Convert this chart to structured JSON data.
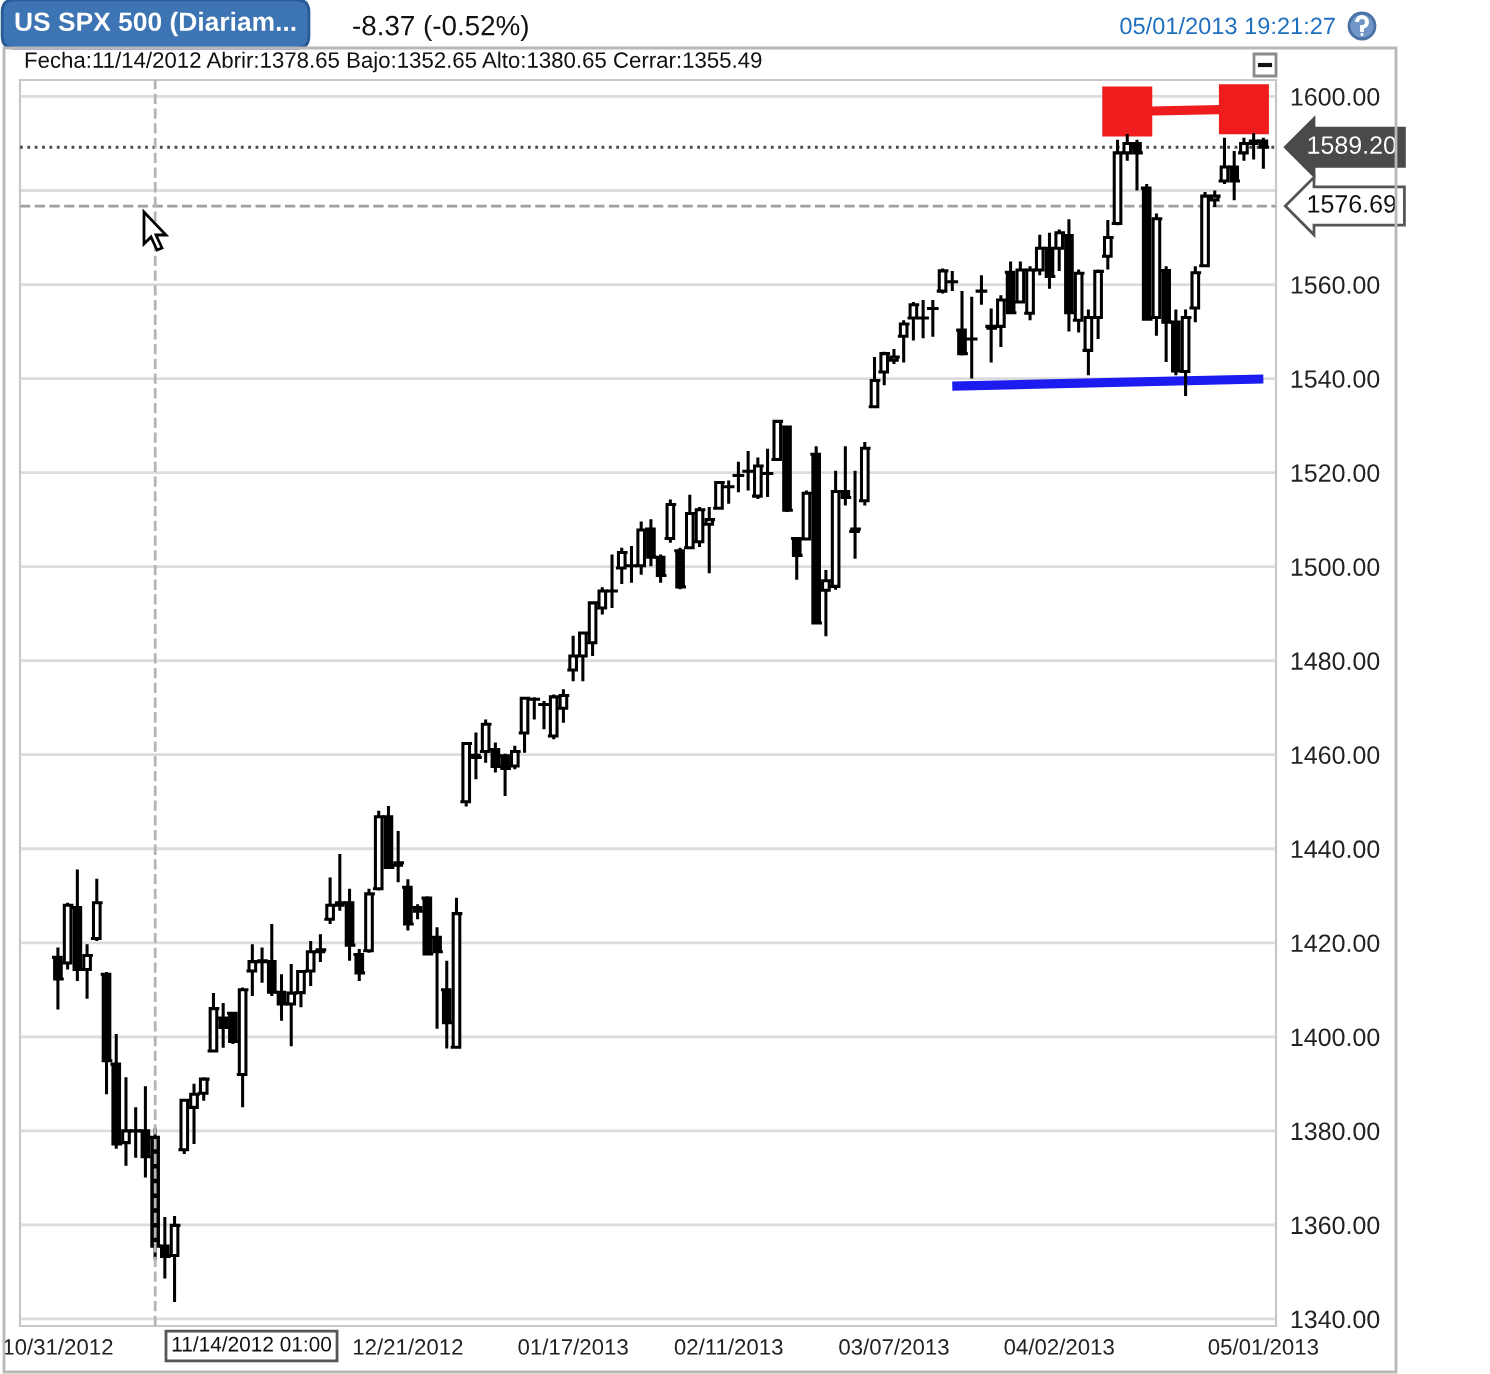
{
  "chart_data": {
    "type": "candlestick",
    "title": "US SPX 500 (Diariam...",
    "subtitle": "-8.37 (-0.52%)",
    "annotations": [
      "05/01/2013 19:21:27",
      "Fecha:11/14/2012 Abrir:1378.65 Bajo:1352.65 Alto:1380.65 Cerrar:1355.49",
      "11/14/2012 01:00"
    ],
    "categories": [
      "10/31/2012",
      null,
      null,
      null,
      null,
      null,
      null,
      null,
      null,
      null,
      null,
      null,
      null,
      null,
      null,
      null,
      null,
      null,
      null,
      null,
      null,
      null,
      null,
      null,
      null,
      null,
      null,
      null,
      null,
      null,
      null,
      null,
      null,
      null,
      null,
      null,
      "12/21/2012",
      null,
      null,
      null,
      null,
      null,
      null,
      null,
      null,
      null,
      null,
      null,
      null,
      null,
      null,
      null,
      null,
      "01/17/2013",
      null,
      null,
      null,
      null,
      null,
      null,
      null,
      null,
      null,
      null,
      null,
      null,
      null,
      null,
      null,
      "02/11/2013",
      null,
      null,
      null,
      null,
      null,
      null,
      null,
      null,
      null,
      null,
      null,
      null,
      null,
      null,
      null,
      null,
      "03/07/2013",
      null,
      null,
      null,
      null,
      null,
      null,
      null,
      null,
      null,
      null,
      null,
      null,
      null,
      null,
      null,
      null,
      "04/02/2013",
      null,
      null,
      null,
      null,
      null,
      null,
      null,
      null,
      null,
      null,
      null,
      null,
      null,
      null,
      null,
      null,
      null,
      null,
      null,
      null,
      "05/01/2013"
    ],
    "color": "#000000",
    "ohlc": [
      [
        1416.9,
        1419.0,
        1405.8,
        1412.3
      ],
      [
        1415.7,
        1428.5,
        1414.3,
        1428.0
      ],
      [
        1427.5,
        1435.6,
        1411.9,
        1414.3
      ],
      [
        1414.3,
        1419.7,
        1408.1,
        1417.3
      ],
      [
        1420.9,
        1433.6,
        1420.4,
        1428.5
      ],
      [
        1413.3,
        1413.8,
        1387.8,
        1394.9
      ],
      [
        1394.2,
        1400.6,
        1376.2,
        1377.2
      ],
      [
        1377.5,
        1391.4,
        1372.6,
        1380.0
      ],
      [
        1380.0,
        1385.0,
        1374.3,
        1380.0
      ],
      [
        1380.0,
        1389.5,
        1370.1,
        1374.5
      ],
      [
        1378.65,
        1380.65,
        1352.65,
        1355.49
      ],
      [
        1355.5,
        1361.7,
        1348.6,
        1353.3
      ],
      [
        1353.5,
        1361.9,
        1343.6,
        1359.9
      ],
      [
        1376.0,
        1386.8,
        1375.1,
        1386.5
      ],
      [
        1385.0,
        1390.0,
        1377.2,
        1387.8
      ],
      [
        1388.0,
        1391.4,
        1386.4,
        1391.0
      ],
      [
        1397.0,
        1409.3,
        1396.8,
        1406.0
      ],
      [
        1404.0,
        1407.2,
        1397.7,
        1402.0
      ],
      [
        1405.0,
        1405.3,
        1398.5,
        1399.0
      ],
      [
        1392.0,
        1410.5,
        1385.0,
        1410.0
      ],
      [
        1414.0,
        1419.7,
        1408.7,
        1416.0
      ],
      [
        1416.0,
        1419.0,
        1411.5,
        1416.2
      ],
      [
        1416.0,
        1424.0,
        1408.7,
        1409.5
      ],
      [
        1409.5,
        1413.3,
        1403.4,
        1407.0
      ],
      [
        1407.0,
        1415.5,
        1398.0,
        1409.3
      ],
      [
        1409.4,
        1414.0,
        1406.3,
        1413.9
      ],
      [
        1414.0,
        1420.4,
        1410.8,
        1418.1
      ],
      [
        1418.1,
        1421.8,
        1415.9,
        1418.5
      ],
      [
        1425.0,
        1433.9,
        1424.0,
        1428.0
      ],
      [
        1428.0,
        1438.9,
        1426.8,
        1428.5
      ],
      [
        1428.5,
        1431.5,
        1416.2,
        1419.5
      ],
      [
        1417.5,
        1418.7,
        1411.9,
        1413.6
      ],
      [
        1418.3,
        1431.5,
        1417.9,
        1430.4
      ],
      [
        1431.5,
        1448.1,
        1431.1,
        1446.8
      ],
      [
        1446.8,
        1449.1,
        1436.0,
        1436.0
      ],
      [
        1436.5,
        1443.8,
        1432.9,
        1437.0
      ],
      [
        1431.8,
        1433.5,
        1422.6,
        1424.0
      ],
      [
        1427.5,
        1428.2,
        1425.0,
        1426.7
      ],
      [
        1429.5,
        1429.9,
        1417.3,
        1417.6
      ],
      [
        1421.2,
        1423.3,
        1401.7,
        1418.1
      ],
      [
        1410.0,
        1416.2,
        1397.5,
        1403.0
      ],
      [
        1397.8,
        1429.6,
        1397.7,
        1426.2
      ],
      [
        1450.0,
        1462.6,
        1449.0,
        1462.4
      ],
      [
        1459.9,
        1464.7,
        1454.8,
        1459.4
      ],
      [
        1460.7,
        1467.5,
        1458.3,
        1466.5
      ],
      [
        1461.1,
        1462.6,
        1456.2,
        1457.5
      ],
      [
        1459.8,
        1460.2,
        1451.2,
        1457.1
      ],
      [
        1457.6,
        1461.9,
        1456.9,
        1460.7
      ],
      [
        1464.6,
        1472.2,
        1460.4,
        1472.0
      ],
      [
        1471.8,
        1472.2,
        1467.5,
        1471.8
      ],
      [
        1470.7,
        1471.4,
        1465.4,
        1470.7
      ],
      [
        1464.0,
        1472.8,
        1463.3,
        1472.3
      ],
      [
        1469.9,
        1473.9,
        1466.8,
        1472.6
      ],
      [
        1478.0,
        1485.3,
        1475.6,
        1481.0
      ],
      [
        1481.0,
        1486.0,
        1475.6,
        1485.9
      ],
      [
        1483.8,
        1492.6,
        1481.0,
        1492.3
      ],
      [
        1491.2,
        1495.6,
        1489.8,
        1494.8
      ],
      [
        1494.8,
        1502.6,
        1491.2,
        1494.8
      ],
      [
        1499.7,
        1504.0,
        1496.3,
        1503.0
      ],
      [
        1500.2,
        1504.4,
        1496.6,
        1500.2
      ],
      [
        1500.2,
        1509.6,
        1498.3,
        1507.8
      ],
      [
        1508.0,
        1510.1,
        1500.1,
        1502.0
      ],
      [
        1502.0,
        1502.6,
        1496.6,
        1498.1
      ],
      [
        1506.0,
        1514.3,
        1505.1,
        1513.2
      ],
      [
        1503.4,
        1504.0,
        1495.2,
        1495.7
      ],
      [
        1504.0,
        1515.3,
        1504.0,
        1511.3
      ],
      [
        1505.3,
        1512.7,
        1504.2,
        1512.1
      ],
      [
        1509.0,
        1512.7,
        1498.6,
        1510.0
      ],
      [
        1512.4,
        1518.0,
        1512.4,
        1517.9
      ],
      [
        1517.0,
        1518.3,
        1513.4,
        1517.0
      ],
      [
        1519.4,
        1522.3,
        1515.8,
        1519.4
      ],
      [
        1520.3,
        1524.6,
        1516.2,
        1520.3
      ],
      [
        1515.0,
        1523.2,
        1514.4,
        1521.4
      ],
      [
        1519.8,
        1525.1,
        1514.8,
        1519.8
      ],
      [
        1522.8,
        1531.0,
        1522.8,
        1530.9
      ],
      [
        1529.7,
        1529.9,
        1511.6,
        1512.0
      ],
      [
        1506.0,
        1506.3,
        1497.2,
        1502.4
      ],
      [
        1505.9,
        1516.2,
        1505.9,
        1515.6
      ],
      [
        1523.9,
        1525.6,
        1488.0,
        1488.0
      ],
      [
        1495.0,
        1499.3,
        1485.2,
        1497.0
      ],
      [
        1495.8,
        1520.4,
        1495.1,
        1516.0
      ],
      [
        1516.0,
        1525.6,
        1513.0,
        1514.7
      ],
      [
        1507.5,
        1520.4,
        1501.7,
        1508.0
      ],
      [
        1514.0,
        1526.5,
        1513.0,
        1525.2
      ],
      [
        1534.0,
        1544.6,
        1533.9,
        1539.6
      ],
      [
        1541.4,
        1545.7,
        1538.6,
        1545.3
      ],
      [
        1543.9,
        1546.3,
        1543.1,
        1544.6
      ],
      [
        1549.0,
        1552.4,
        1543.4,
        1551.6
      ],
      [
        1552.9,
        1556.3,
        1548.1,
        1555.7
      ],
      [
        1552.9,
        1556.7,
        1548.6,
        1552.9
      ],
      [
        1554.9,
        1556.7,
        1548.9,
        1554.9
      ],
      [
        1558.6,
        1563.4,
        1558.1,
        1562.9
      ],
      [
        1560.6,
        1562.9,
        1558.6,
        1560.6
      ],
      [
        1550.3,
        1558.6,
        1544.9,
        1545.3
      ],
      [
        1548.4,
        1557.4,
        1540.0,
        1548.4
      ],
      [
        1558.6,
        1562.0,
        1555.7,
        1558.6
      ],
      [
        1551.1,
        1554.9,
        1543.4,
        1550.7
      ],
      [
        1551.1,
        1557.7,
        1546.7,
        1556.7
      ],
      [
        1562.6,
        1564.9,
        1553.9,
        1554.0
      ],
      [
        1556.3,
        1564.9,
        1556.3,
        1563.1
      ],
      [
        1553.9,
        1563.9,
        1552.4,
        1563.1
      ],
      [
        1563.1,
        1570.6,
        1562.0,
        1567.7
      ],
      [
        1567.7,
        1571.0,
        1559.1,
        1561.7
      ],
      [
        1567.7,
        1571.7,
        1562.9,
        1571.0
      ],
      [
        1570.4,
        1573.9,
        1550.0,
        1554.0
      ],
      [
        1552.4,
        1563.2,
        1549.8,
        1562.4
      ],
      [
        1546.0,
        1554.7,
        1540.7,
        1553.0
      ],
      [
        1553.0,
        1563.2,
        1548.4,
        1562.8
      ],
      [
        1566.0,
        1573.7,
        1563.2,
        1570.0
      ],
      [
        1573.0,
        1590.8,
        1572.6,
        1588.0
      ],
      [
        1588.0,
        1592.0,
        1586.3,
        1590.0
      ],
      [
        1590.0,
        1590.8,
        1580.0,
        1588.0
      ],
      [
        1580.5,
        1581.4,
        1552.6,
        1552.6
      ],
      [
        1553.0,
        1575.1,
        1549.1,
        1574.0
      ],
      [
        1563.0,
        1563.9,
        1543.5,
        1552.0
      ],
      [
        1552.0,
        1554.7,
        1540.7,
        1541.6
      ],
      [
        1541.5,
        1554.7,
        1536.3,
        1553.0
      ],
      [
        1555.0,
        1563.9,
        1552.0,
        1562.5
      ],
      [
        1564.0,
        1579.7,
        1564.0,
        1578.8
      ],
      [
        1578.0,
        1580.0,
        1576.5,
        1578.8
      ],
      [
        1582.0,
        1591.2,
        1581.4,
        1585.0
      ],
      [
        1585.0,
        1588.4,
        1577.9,
        1582.0
      ],
      [
        1588.0,
        1591.2,
        1586.3,
        1590.0
      ],
      [
        1590.0,
        1592.2,
        1586.6,
        1590.5
      ],
      [
        1590.5,
        1591.2,
        1584.6,
        1589.2
      ]
    ],
    "series": [
      {
        "type": "line",
        "color": "#1c1cf0",
        "values": [
          null,
          null,
          null,
          null,
          null,
          null,
          null,
          null,
          null,
          null,
          null,
          null,
          null,
          null,
          null,
          null,
          null,
          null,
          null,
          null,
          null,
          null,
          null,
          null,
          null,
          null,
          null,
          null,
          null,
          null,
          null,
          null,
          null,
          null,
          null,
          null,
          null,
          null,
          null,
          null,
          null,
          null,
          null,
          null,
          null,
          null,
          null,
          null,
          null,
          null,
          null,
          null,
          null,
          null,
          null,
          null,
          null,
          null,
          null,
          null,
          null,
          null,
          null,
          null,
          null,
          null,
          null,
          null,
          null,
          null,
          null,
          null,
          null,
          null,
          null,
          null,
          null,
          null,
          null,
          null,
          null,
          null,
          null,
          null,
          null,
          null,
          null,
          null,
          null,
          null,
          null,
          null,
          1538.4,
          null,
          null,
          null,
          null,
          null,
          null,
          null,
          null,
          null,
          null,
          null,
          null,
          null,
          null,
          null,
          null,
          null,
          null,
          null,
          null,
          null,
          null,
          null,
          null,
          null,
          null,
          null,
          null,
          null,
          null,
          null,
          1539.9
        ]
      },
      {
        "type": "line",
        "color": "#ee1c1c",
        "marker": "square",
        "values": [
          null,
          null,
          null,
          null,
          null,
          null,
          null,
          null,
          null,
          null,
          null,
          null,
          null,
          null,
          null,
          null,
          null,
          null,
          null,
          null,
          null,
          null,
          null,
          null,
          null,
          null,
          null,
          null,
          null,
          null,
          null,
          null,
          null,
          null,
          null,
          null,
          null,
          null,
          null,
          null,
          null,
          null,
          null,
          null,
          null,
          null,
          null,
          null,
          null,
          null,
          null,
          null,
          null,
          null,
          null,
          null,
          null,
          null,
          null,
          null,
          null,
          null,
          null,
          null,
          null,
          null,
          null,
          null,
          null,
          null,
          null,
          null,
          null,
          null,
          null,
          null,
          null,
          null,
          null,
          null,
          null,
          null,
          null,
          null,
          null,
          null,
          null,
          null,
          null,
          null,
          null,
          null,
          null,
          null,
          null,
          null,
          null,
          null,
          null,
          null,
          null,
          null,
          null,
          null,
          null,
          null,
          null,
          null,
          null,
          null,
          1596.8,
          null,
          null,
          null,
          null,
          null,
          null,
          null,
          null,
          null,
          null,
          null,
          1597.3,
          null,
          null
        ]
      }
    ],
    "ref_lines": [
      {
        "axis": "y",
        "value": 1589.2,
        "label": "1589.20",
        "color": "#4a4a4a",
        "line_style": "dotted"
      },
      {
        "axis": "y",
        "value": 1576.69,
        "label": "1576.69",
        "color": "#a0a0a0",
        "line_style": "dashed"
      }
    ],
    "ylim": [
      1338.5,
      1603.5
    ],
    "yticks": [
      {
        "value": 1340,
        "label": "1340.00"
      },
      {
        "value": 1360,
        "label": "1360.00"
      },
      {
        "value": 1380,
        "label": "1380.00"
      },
      {
        "value": 1400,
        "label": "1400.00"
      },
      {
        "value": 1420,
        "label": "1420.00"
      },
      {
        "value": 1440,
        "label": "1440.00"
      },
      {
        "value": 1460,
        "label": "1460.00"
      },
      {
        "value": 1480,
        "label": "1480.00"
      },
      {
        "value": 1500,
        "label": "1500.00"
      },
      {
        "value": 1520,
        "label": "1520.00"
      },
      {
        "value": 1540,
        "label": "1540.00"
      },
      {
        "value": 1560,
        "label": "1560.00"
      },
      {
        "value": 1580,
        "label": null
      },
      {
        "value": 1600,
        "label": "1600.00"
      }
    ],
    "grid": "y"
  }
}
